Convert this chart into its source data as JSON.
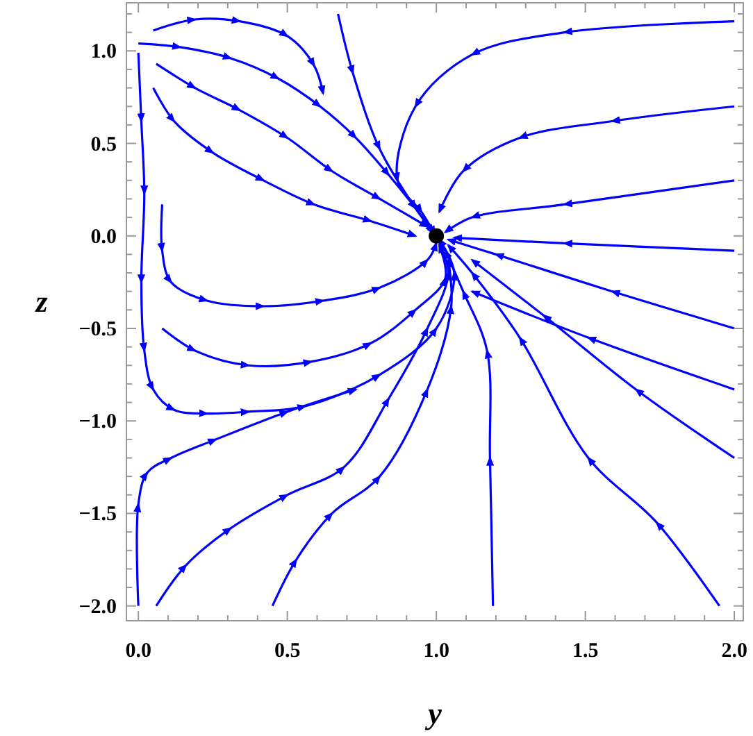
{
  "chart_data": {
    "type": "line",
    "xlabel": "y",
    "ylabel": "z",
    "xlim": [
      -0.04,
      2.03
    ],
    "ylim": [
      -2.08,
      1.26
    ],
    "grid": false,
    "xticks": [
      {
        "value": 0,
        "label": "0.0"
      },
      {
        "value": 0.1,
        "label": null
      },
      {
        "value": 0.2,
        "label": null
      },
      {
        "value": 0.3,
        "label": null
      },
      {
        "value": 0.4,
        "label": null
      },
      {
        "value": 0.5,
        "label": "0.5"
      },
      {
        "value": 0.6,
        "label": null
      },
      {
        "value": 0.7,
        "label": null
      },
      {
        "value": 0.8,
        "label": null
      },
      {
        "value": 0.9,
        "label": null
      },
      {
        "value": 1,
        "label": "1.0"
      },
      {
        "value": 1.1,
        "label": null
      },
      {
        "value": 1.2,
        "label": null
      },
      {
        "value": 1.3,
        "label": null
      },
      {
        "value": 1.4,
        "label": null
      },
      {
        "value": 1.5,
        "label": "1.5"
      },
      {
        "value": 1.6,
        "label": null
      },
      {
        "value": 1.7,
        "label": null
      },
      {
        "value": 1.8,
        "label": null
      },
      {
        "value": 1.9,
        "label": null
      },
      {
        "value": 2,
        "label": "2.0"
      }
    ],
    "yticks": [
      {
        "value": -2,
        "label": "−2.0"
      },
      {
        "value": -1.9,
        "label": null
      },
      {
        "value": -1.8,
        "label": null
      },
      {
        "value": -1.7,
        "label": null
      },
      {
        "value": -1.6,
        "label": null
      },
      {
        "value": -1.5,
        "label": "−1.5"
      },
      {
        "value": -1.4,
        "label": null
      },
      {
        "value": -1.3,
        "label": null
      },
      {
        "value": -1.2,
        "label": null
      },
      {
        "value": -1.1,
        "label": null
      },
      {
        "value": -1,
        "label": "−1.0"
      },
      {
        "value": -0.9,
        "label": null
      },
      {
        "value": -0.8,
        "label": null
      },
      {
        "value": -0.7,
        "label": null
      },
      {
        "value": -0.6,
        "label": null
      },
      {
        "value": -0.5,
        "label": "−0.5"
      },
      {
        "value": -0.4,
        "label": null
      },
      {
        "value": -0.3,
        "label": null
      },
      {
        "value": -0.2,
        "label": null
      },
      {
        "value": -0.1,
        "label": null
      },
      {
        "value": 0,
        "label": "0.0"
      },
      {
        "value": 0.1,
        "label": null
      },
      {
        "value": 0.2,
        "label": null
      },
      {
        "value": 0.3,
        "label": null
      },
      {
        "value": 0.4,
        "label": null
      },
      {
        "value": 0.5,
        "label": "0.5"
      },
      {
        "value": 0.6,
        "label": null
      },
      {
        "value": 0.7,
        "label": null
      },
      {
        "value": 0.8,
        "label": null
      },
      {
        "value": 0.9,
        "label": null
      },
      {
        "value": 1,
        "label": "1.0"
      },
      {
        "value": 1.1,
        "label": null
      },
      {
        "value": 1.2,
        "label": null
      }
    ],
    "series": [
      {
        "color": "#0000ff",
        "x": [
          0,
          0.14,
          0.31,
          0.47,
          0.61,
          0.73,
          0.84,
          0.93,
          0.995
        ],
        "values": [
          1.04,
          1.02,
          0.96,
          0.85,
          0.7,
          0.53,
          0.33,
          0.15,
          0.01
        ]
      },
      {
        "color": "#0000ff",
        "x": [
          0.06,
          0.19,
          0.34,
          0.5,
          0.65,
          0.81,
          0.97
        ],
        "values": [
          0.93,
          0.8,
          0.68,
          0.53,
          0.35,
          0.2,
          0.05
        ]
      },
      {
        "color": "#0000ff",
        "x": [
          0.05,
          0.12,
          0.25,
          0.42,
          0.59,
          0.78,
          0.93
        ],
        "values": [
          0.8,
          0.62,
          0.45,
          0.3,
          0.17,
          0.08,
          0
        ]
      },
      {
        "color": "#0000ff",
        "x": [
          0,
          0.01,
          0.02,
          0.01,
          0.02,
          0.05,
          0.12,
          0.23,
          0.37,
          0.56,
          0.81,
          1,
          1.06,
          1.01
        ],
        "values": [
          0.99,
          0.62,
          0.23,
          -0.25,
          -0.62,
          -0.83,
          -0.94,
          -0.96,
          -0.95,
          -0.92,
          -0.75,
          -0.5,
          -0.2,
          -0.02
        ]
      },
      {
        "color": "#0000ff",
        "x": [
          0.08,
          0.08,
          0.11,
          0.23,
          0.42,
          0.62,
          0.81,
          0.97,
          1
        ],
        "values": [
          0.17,
          -0.08,
          -0.25,
          -0.35,
          -0.38,
          -0.35,
          -0.28,
          -0.13,
          -0.04
        ]
      },
      {
        "color": "#0000ff",
        "x": [
          0.08,
          0.19,
          0.37,
          0.58,
          0.78,
          0.93,
          1.03,
          1.01
        ],
        "values": [
          -0.5,
          -0.62,
          -0.7,
          -0.68,
          -0.58,
          -0.4,
          -0.23,
          -0.05
        ]
      },
      {
        "color": "#0000ff",
        "x": [
          0.06,
          0.16,
          0.31,
          0.5,
          0.69,
          0.84,
          0.97,
          1.04,
          1.01
        ],
        "values": [
          -2,
          -1.78,
          -1.58,
          -1.4,
          -1.25,
          -0.88,
          -0.5,
          -0.2,
          -0.04
        ]
      },
      {
        "color": "#0000ff",
        "x": [
          0.45,
          0.53,
          0.65,
          0.81,
          0.97,
          1.05,
          1.04
        ],
        "values": [
          -2,
          -1.75,
          -1.5,
          -1.3,
          -0.83,
          -0.38,
          -0.13
        ]
      },
      {
        "color": "#0000ff",
        "x": [
          1.19,
          1.18,
          1.17,
          1.09,
          1.03
        ],
        "values": [
          -2,
          -1.2,
          -0.62,
          -0.3,
          -0.08
        ]
      },
      {
        "color": "#0000ff",
        "x": [
          1.95,
          1.74,
          1.51,
          1.28,
          1.12,
          1.04
        ],
        "values": [
          -2,
          -1.55,
          -1.2,
          -0.55,
          -0.2,
          -0.05
        ]
      },
      {
        "color": "#0000ff",
        "x": [
          2,
          1.59,
          1.2,
          1.04
        ],
        "values": [
          -0.5,
          -0.3,
          -0.1,
          -0.02
        ]
      },
      {
        "color": "#0000ff",
        "x": [
          2,
          1.67,
          1.36,
          1.12
        ],
        "values": [
          -1.2,
          -0.83,
          -0.43,
          -0.13
        ]
      },
      {
        "color": "#0000ff",
        "x": [
          2,
          1.51,
          1.12
        ],
        "values": [
          -0.83,
          -0.55,
          -0.3
        ]
      },
      {
        "color": "#0000ff",
        "x": [
          2,
          1.43,
          1.12,
          0.93,
          0.87,
          0.95,
          0.995
        ],
        "values": [
          1.16,
          1.1,
          0.98,
          0.7,
          0.3,
          0.13,
          0.01
        ]
      },
      {
        "color": "#0000ff",
        "x": [
          2,
          1.59,
          1.28,
          1.09,
          1.01
        ],
        "values": [
          0.7,
          0.62,
          0.53,
          0.35,
          0.13
        ]
      },
      {
        "color": "#0000ff",
        "x": [
          2,
          1.43,
          1.12,
          1.03
        ],
        "values": [
          0.3,
          0.17,
          0.1,
          0.02
        ]
      },
      {
        "color": "#0000ff",
        "x": [
          2,
          1.43,
          1.06
        ],
        "values": [
          -0.08,
          -0.04,
          -0.01
        ]
      },
      {
        "color": "#0000ff",
        "x": [
          0.67,
          0.72,
          0.81,
          0.93,
          0.99
        ],
        "values": [
          1.2,
          0.88,
          0.47,
          0.15,
          0.02
        ]
      },
      {
        "color": "#0000ff",
        "x": [
          0,
          0,
          0.03,
          0.11,
          0.26,
          0.5,
          0.73
        ],
        "values": [
          -2,
          -1.45,
          -1.28,
          -1.2,
          -1.1,
          -0.95,
          -0.83
        ]
      },
      {
        "color": "#0000ff",
        "x": [
          0.05,
          0.19,
          0.34,
          0.5,
          0.59,
          0.62
        ],
        "values": [
          1.11,
          1.17,
          1.16,
          1.08,
          0.92,
          0.77
        ]
      },
      {
        "type": "scatter",
        "color": "#000000",
        "marker": "circle",
        "x": [
          1
        ],
        "values": [
          0
        ]
      }
    ]
  }
}
